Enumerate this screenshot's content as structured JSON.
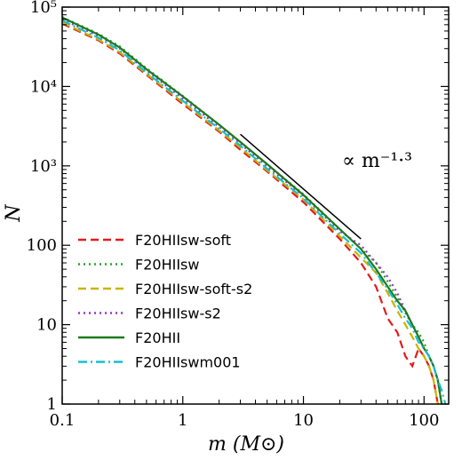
{
  "chart_data": {
    "type": "line",
    "xlabel": "m (M⊙)",
    "ylabel": "N",
    "xscale": "log",
    "yscale": "log",
    "xlim": [
      0.1,
      160
    ],
    "ylim": [
      1,
      100000
    ],
    "grid": false,
    "legend_position": "bottom-left",
    "x_tick_labels": [
      "0.1",
      "1",
      "10",
      "100"
    ],
    "y_tick_labels": [
      "1",
      "10",
      "100",
      "10³",
      "10⁴",
      "10⁵"
    ],
    "annotation": {
      "text": "∝ m⁻¹·³",
      "x": [
        3,
        30
      ],
      "y": [
        2500,
        120
      ]
    },
    "series": [
      {
        "name": "F20HIIsw-soft",
        "color": "#e41a1c",
        "dash": "dashed",
        "x": [
          0.1,
          0.2,
          0.3,
          0.5,
          1,
          2,
          3,
          5,
          10,
          20,
          30,
          40,
          50,
          60,
          70,
          80,
          90,
          100,
          110,
          120,
          130
        ],
        "y": [
          62000,
          38000,
          26000,
          14000,
          6000,
          2700,
          1600,
          850,
          350,
          120,
          60,
          30,
          12,
          8,
          4,
          3,
          5,
          4,
          3,
          2,
          1
        ]
      },
      {
        "name": "F20HIIsw",
        "color": "#2ca02c",
        "dash": "dotted",
        "x": [
          0.1,
          0.2,
          0.3,
          0.5,
          1,
          2,
          3,
          5,
          10,
          20,
          30,
          40,
          50,
          60,
          70,
          80,
          90,
          100,
          110,
          120,
          130,
          140
        ],
        "y": [
          75000,
          46000,
          32000,
          17000,
          7600,
          3300,
          2000,
          1050,
          440,
          160,
          90,
          60,
          35,
          22,
          14,
          10,
          8,
          6,
          4,
          3,
          2,
          1
        ]
      },
      {
        "name": "F20HIIsw-soft-s2",
        "color": "#c8b400",
        "dash": "dashed",
        "x": [
          0.1,
          0.2,
          0.3,
          0.5,
          1,
          2,
          3,
          5,
          10,
          20,
          30,
          40,
          50,
          60,
          70,
          80,
          90,
          100,
          110,
          120,
          130
        ],
        "y": [
          64000,
          39000,
          27000,
          14500,
          6300,
          2800,
          1700,
          880,
          380,
          130,
          70,
          45,
          25,
          15,
          10,
          7,
          5,
          4,
          3,
          2,
          1
        ]
      },
      {
        "name": "F20HIIsw-s2",
        "color": "#9933cc",
        "dash": "dotted",
        "x": [
          0.1,
          0.2,
          0.3,
          0.5,
          1,
          2,
          3,
          5,
          10,
          20,
          30,
          40,
          50,
          60,
          70,
          80,
          90,
          100,
          110,
          120,
          130,
          140
        ],
        "y": [
          70000,
          43000,
          30000,
          16000,
          7000,
          3100,
          1900,
          980,
          420,
          150,
          100,
          60,
          40,
          25,
          15,
          10,
          7,
          5,
          4,
          3,
          2,
          1
        ]
      },
      {
        "name": "F20HII",
        "color": "#1e7a1e",
        "dash": "solid",
        "x": [
          0.1,
          0.2,
          0.3,
          0.5,
          1,
          2,
          3,
          5,
          10,
          20,
          30,
          40,
          50,
          60,
          70,
          80,
          90,
          100,
          110,
          120,
          130,
          140
        ],
        "y": [
          74000,
          45000,
          31000,
          16500,
          7500,
          3300,
          2000,
          1050,
          430,
          160,
          90,
          50,
          30,
          20,
          15,
          10,
          7,
          5,
          4,
          3,
          2,
          1
        ]
      },
      {
        "name": "F20HIIswm001",
        "color": "#17becf",
        "dash": "dashdot",
        "x": [
          0.1,
          0.2,
          0.3,
          0.5,
          1,
          2,
          3,
          5,
          10,
          20,
          30,
          40,
          50,
          60,
          70,
          80,
          90,
          100,
          110,
          120,
          130,
          140,
          150
        ],
        "y": [
          68000,
          41000,
          28500,
          15000,
          6600,
          2950,
          1800,
          920,
          390,
          140,
          80,
          45,
          28,
          18,
          12,
          9,
          6,
          5,
          4,
          3,
          2,
          1.5,
          1
        ]
      }
    ]
  }
}
